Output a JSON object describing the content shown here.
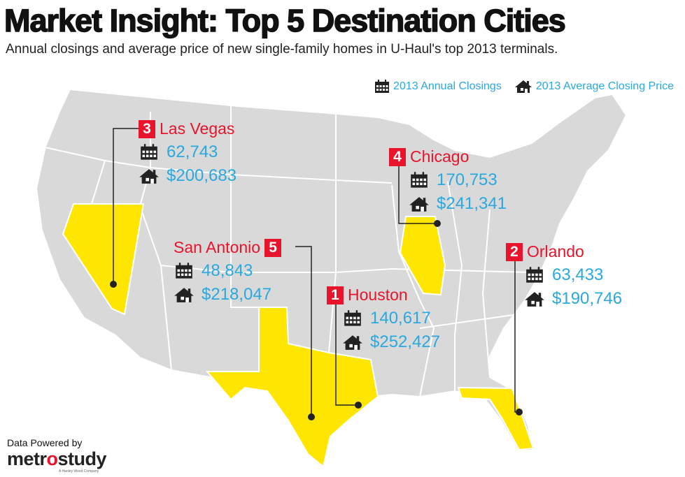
{
  "header": {
    "title": "Market Insight: Top 5 Destination Cities",
    "subtitle": "Annual closings and average price of new single-family homes in U-Haul's top 2013 terminals."
  },
  "legend": {
    "closings_label": "2013 Annual Closings",
    "closings_icon": "calendar-icon",
    "price_label": "2013 Average Closing Price",
    "price_icon": "house-icon"
  },
  "colors": {
    "accent_red": "#e8142b",
    "value_blue": "#2aa8e0",
    "highlight_yellow": "#ffe600",
    "map_gray": "#d9d9d9"
  },
  "cities": [
    {
      "rank": "3",
      "name": "Las Vegas",
      "closings": "62,743",
      "price": "$200,683"
    },
    {
      "rank": "4",
      "name": "Chicago",
      "closings": "170,753",
      "price": "$241,341"
    },
    {
      "rank": "5",
      "name": "San Antonio",
      "closings": "48,843",
      "price": "$218,047"
    },
    {
      "rank": "1",
      "name": "Houston",
      "closings": "140,617",
      "price": "$252,427"
    },
    {
      "rank": "2",
      "name": "Orlando",
      "closings": "63,433",
      "price": "$190,746"
    }
  ],
  "footer": {
    "powered": "Data Powered by",
    "logo_a": "metr",
    "logo_o": "o",
    "logo_b": "study",
    "logo_tagline": "A Hanley Wood Company"
  }
}
